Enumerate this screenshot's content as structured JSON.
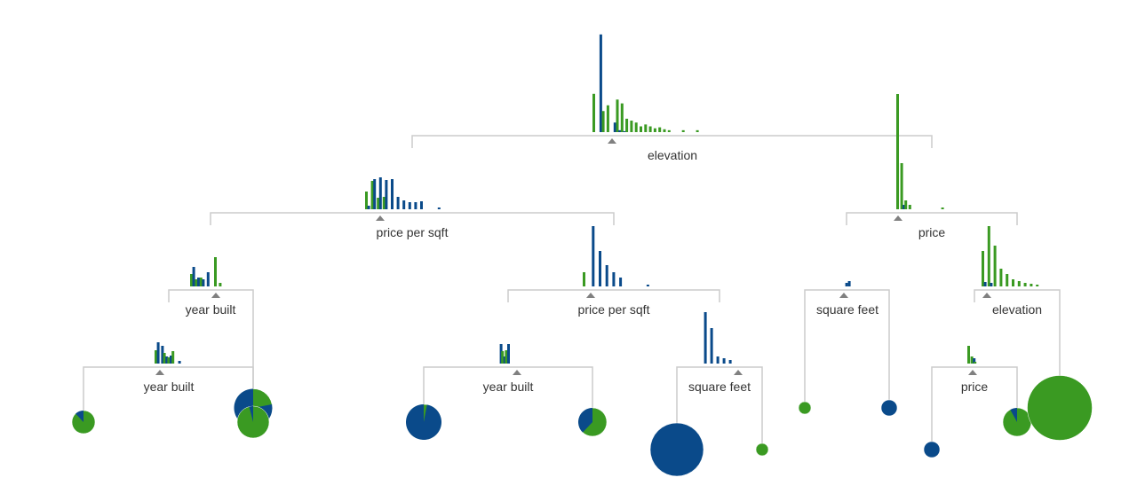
{
  "colors": {
    "class_a": "#0a4a8a",
    "class_b": "#3a9a22",
    "line": "#cccccc",
    "marker": "#808080",
    "label": "#333333"
  },
  "tree": {
    "nodes": [
      {
        "id": "n0",
        "label": "elevation",
        "hist_a": [
          0,
          102,
          0,
          0,
          10,
          2,
          1,
          0,
          0,
          0,
          0,
          0,
          0,
          0,
          0,
          0,
          0,
          0,
          0,
          0,
          0,
          0,
          0
        ],
        "hist_b": [
          40,
          0,
          22,
          28,
          0,
          34,
          30,
          14,
          12,
          10,
          6,
          8,
          6,
          4,
          5,
          3,
          2,
          0,
          0,
          2,
          0,
          0,
          2
        ]
      },
      {
        "id": "n1",
        "label": "price per sqft",
        "hist_a": [
          4,
          34,
          36,
          33,
          34,
          14,
          10,
          8,
          8,
          9,
          0,
          0,
          2
        ],
        "hist_b": [
          20,
          32,
          13,
          14,
          0,
          0,
          0,
          0,
          0,
          0,
          0,
          0,
          0
        ]
      },
      {
        "id": "n2",
        "label": "price",
        "hist_a": [
          0,
          5,
          0,
          0,
          0,
          0,
          0,
          0,
          0,
          0,
          0,
          0
        ],
        "hist_b": [
          130,
          52,
          10,
          5,
          0,
          0,
          0,
          0,
          0,
          0,
          0,
          2
        ]
      },
      {
        "id": "n3",
        "label": "year built",
        "hist_a": [
          22,
          10,
          8,
          16,
          0,
          0,
          0
        ],
        "hist_b": [
          14,
          8,
          10,
          0,
          0,
          33,
          4
        ]
      },
      {
        "id": "n4",
        "label": "price per sqft",
        "hist_a": [
          0,
          68,
          40,
          24,
          16,
          10,
          0,
          0,
          0,
          2
        ],
        "hist_b": [
          16,
          0,
          0,
          0,
          0,
          0,
          0,
          0,
          0,
          0
        ]
      },
      {
        "id": "n5",
        "label": "square feet",
        "hist_a": [
          4,
          6
        ],
        "hist_b": [
          0,
          0
        ]
      },
      {
        "id": "n6",
        "label": "elevation",
        "hist_a": [
          5,
          4,
          0,
          0,
          0,
          0,
          0,
          0,
          0,
          0
        ],
        "hist_b": [
          40,
          68,
          46,
          20,
          14,
          8,
          6,
          4,
          3,
          2
        ]
      },
      {
        "id": "n7",
        "label": "year built",
        "hist_a": [
          24,
          20,
          8,
          9,
          0,
          3
        ],
        "hist_b": [
          15,
          0,
          12,
          7,
          14,
          0
        ]
      },
      {
        "id": "n8",
        "label": "year built",
        "hist_a": [
          22,
          8,
          22,
          0
        ],
        "hist_b": [
          0,
          14,
          15,
          0
        ]
      },
      {
        "id": "n9",
        "label": "square feet",
        "hist_a": [
          58,
          40,
          8,
          6,
          4
        ],
        "hist_b": [
          0,
          0,
          0,
          0,
          0
        ]
      },
      {
        "id": "n10",
        "label": "price",
        "hist_a": [
          0,
          6,
          0
        ],
        "hist_b": [
          20,
          8,
          2
        ]
      }
    ],
    "leaves": [
      {
        "id": "l0",
        "class_a_fraction": 0.12,
        "size": 0.18
      },
      {
        "id": "l1",
        "class_a_fraction": 0.78,
        "size": 0.35
      },
      {
        "id": "l2",
        "class_a_fraction": 0.04,
        "size": 0.28
      },
      {
        "id": "l3",
        "class_a_fraction": 0.97,
        "size": 0.32
      },
      {
        "id": "l4",
        "class_a_fraction": 0.38,
        "size": 0.24
      },
      {
        "id": "l5",
        "class_a_fraction": 1.0,
        "size": 0.52
      },
      {
        "id": "l6",
        "class_a_fraction": 0.0,
        "size": 0.06
      },
      {
        "id": "l7",
        "class_a_fraction": 0.0,
        "size": 0.06
      },
      {
        "id": "l8",
        "class_a_fraction": 1.0,
        "size": 0.1
      },
      {
        "id": "l9",
        "class_a_fraction": 1.0,
        "size": 0.1
      },
      {
        "id": "l10",
        "class_a_fraction": 0.08,
        "size": 0.24
      },
      {
        "id": "l11",
        "class_a_fraction": 0.0,
        "size": 0.65
      }
    ],
    "edges": [
      [
        "n0",
        "n1"
      ],
      [
        "n0",
        "n2"
      ],
      [
        "n1",
        "n3"
      ],
      [
        "n1",
        "n4"
      ],
      [
        "n2",
        "n5"
      ],
      [
        "n2",
        "n6"
      ],
      [
        "n3",
        "n7"
      ],
      [
        "n3",
        "l1"
      ],
      [
        "n4",
        "n8"
      ],
      [
        "n4",
        "n9"
      ],
      [
        "n5",
        "l6"
      ],
      [
        "n5",
        "l8"
      ],
      [
        "n6",
        "n10"
      ],
      [
        "n6",
        "l11"
      ],
      [
        "n7",
        "l0"
      ],
      [
        "n7",
        "l2"
      ],
      [
        "n8",
        "l3"
      ],
      [
        "n8",
        "l4"
      ],
      [
        "n9",
        "l5"
      ],
      [
        "n9",
        "l7"
      ],
      [
        "n10",
        "l9"
      ],
      [
        "n10",
        "l10"
      ]
    ]
  }
}
